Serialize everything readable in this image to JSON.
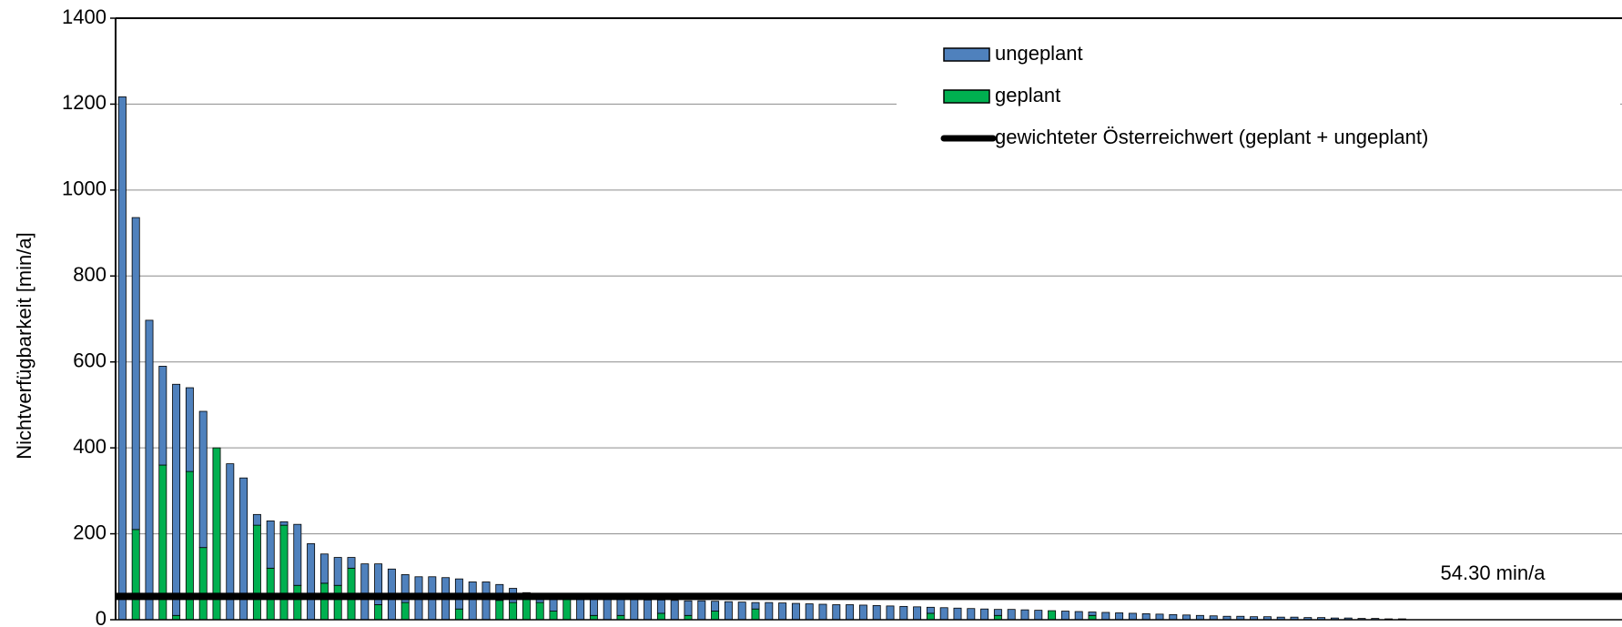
{
  "chart_data": {
    "type": "bar",
    "stacked": true,
    "y_label": "Nichtverfügbarkeit [min/a]",
    "categories": [
      null,
      null,
      null,
      null,
      null,
      null,
      null,
      null,
      null,
      null,
      null,
      null,
      null,
      null,
      null,
      null,
      null,
      null,
      null,
      null,
      null,
      null,
      null,
      null,
      null,
      null,
      null,
      null,
      null,
      null,
      null,
      null,
      null,
      null,
      null,
      null,
      null,
      null,
      null,
      null,
      null,
      null,
      null,
      null,
      null,
      null,
      null,
      null,
      null,
      null,
      null,
      null,
      null,
      null,
      null,
      null,
      null,
      null,
      null,
      null,
      null,
      null,
      null,
      null,
      null,
      null,
      null,
      null,
      null,
      null,
      null,
      null,
      null,
      null,
      null,
      null,
      null,
      null,
      null,
      null,
      null,
      null,
      null,
      null,
      null,
      null,
      null,
      null,
      null,
      null,
      null,
      null,
      null,
      null,
      null,
      null
    ],
    "series": [
      {
        "name": "ungeplant",
        "color": "#4f81bd",
        "values": [
          1217,
          726,
          697,
          230,
          538,
          195,
          317,
          0,
          363,
          330,
          25,
          110,
          8,
          142,
          177,
          68,
          65,
          25,
          130,
          95,
          118,
          65,
          100,
          100,
          98,
          70,
          88,
          88,
          37,
          33,
          3,
          15,
          32,
          0,
          50,
          40,
          48,
          38,
          47,
          46,
          31,
          45,
          34,
          44,
          23,
          42,
          41,
          15,
          40,
          39,
          38,
          37,
          36,
          35,
          35,
          34,
          33,
          32,
          31,
          30,
          14,
          28,
          27,
          26,
          25,
          14,
          24,
          23,
          22,
          0,
          20,
          19,
          8,
          17,
          16,
          15,
          14,
          13,
          12,
          11,
          10,
          9,
          8,
          8,
          7,
          7,
          6,
          6,
          5,
          5,
          4,
          4,
          3,
          3,
          2,
          2
        ]
      },
      {
        "name": "geplant",
        "color": "#00b050",
        "values": [
          0,
          210,
          0,
          360,
          10,
          345,
          168,
          400,
          0,
          0,
          220,
          120,
          220,
          80,
          0,
          85,
          80,
          120,
          0,
          35,
          0,
          40,
          0,
          0,
          0,
          25,
          0,
          0,
          45,
          40,
          60,
          40,
          20,
          52,
          0,
          10,
          0,
          10,
          0,
          0,
          15,
          0,
          10,
          0,
          20,
          0,
          0,
          25,
          0,
          0,
          0,
          0,
          0,
          0,
          0,
          0,
          0,
          0,
          0,
          0,
          15,
          0,
          0,
          0,
          0,
          10,
          0,
          0,
          0,
          21,
          0,
          0,
          10,
          0,
          0,
          0,
          0,
          0,
          0,
          0,
          0,
          0,
          0,
          0,
          0,
          0,
          0,
          0,
          0,
          0,
          0,
          0,
          0,
          0,
          0,
          0
        ]
      }
    ],
    "reference_line": {
      "name": "gewichteter Österreichwert (geplant + ungeplant)",
      "value": 54.3,
      "label": "54.30 min/a",
      "color": "#000000"
    },
    "ylim": [
      0,
      1400
    ],
    "yticks": [
      0,
      200,
      400,
      600,
      800,
      1000,
      1200,
      1400
    ],
    "grid": true,
    "legend": "top-right"
  }
}
